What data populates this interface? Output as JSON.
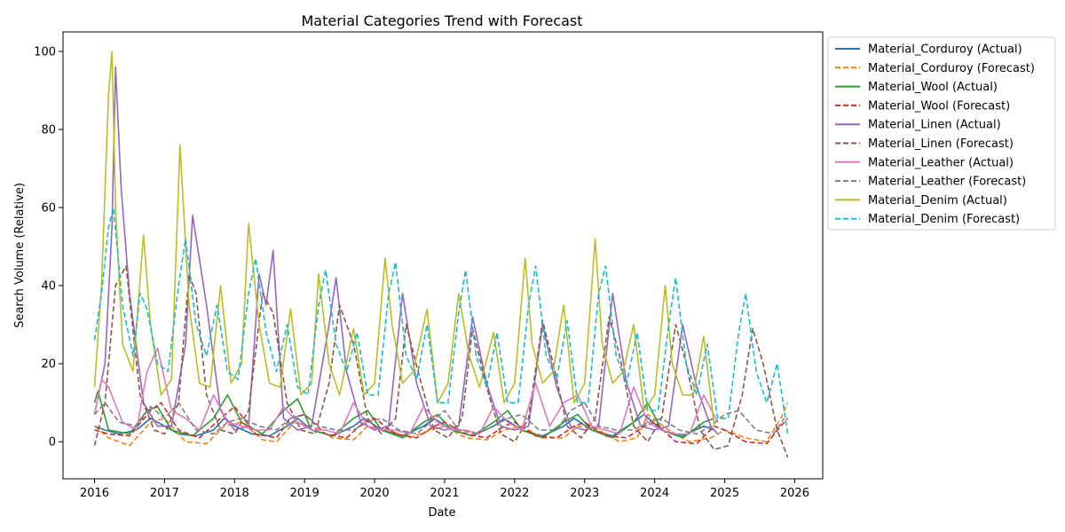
{
  "chart_data": {
    "type": "line",
    "title": "Material Categories Trend with Forecast",
    "xlabel": "Date",
    "ylabel": "Search Volume (Relative)",
    "xlim": [
      2015.55,
      2026.4
    ],
    "ylim": [
      -9.5,
      105
    ],
    "x_ticks": [
      2016,
      2017,
      2018,
      2019,
      2020,
      2021,
      2022,
      2023,
      2024,
      2025,
      2026
    ],
    "x_tick_labels": [
      "2016",
      "2017",
      "2018",
      "2019",
      "2020",
      "2021",
      "2022",
      "2023",
      "2024",
      "2025",
      "2026"
    ],
    "y_ticks": [
      0,
      20,
      40,
      60,
      80,
      100
    ],
    "y_tick_labels": [
      "0",
      "20",
      "40",
      "60",
      "80",
      "100"
    ],
    "grid": false,
    "legend_position": "outside-right-top",
    "series": [
      {
        "name": "Material_Corduroy (Actual)",
        "color": "#1f77b4",
        "style": "solid",
        "x": [
          2016.0,
          2016.15,
          2016.35,
          2016.6,
          2016.8,
          2017.0,
          2017.2,
          2017.45,
          2017.7,
          2017.85,
          2018.0,
          2018.25,
          2018.5,
          2018.75,
          2018.9,
          2019.1,
          2019.4,
          2019.7,
          2019.85,
          2020.1,
          2020.4,
          2020.7,
          2020.85,
          2021.1,
          2021.4,
          2021.7,
          2021.85,
          2022.1,
          2022.4,
          2022.7,
          2022.85,
          2023.1,
          2023.4,
          2023.7,
          2023.85,
          2024.1,
          2024.4,
          2024.7,
          2024.85
        ],
        "y": [
          4,
          3,
          2,
          3,
          6,
          4,
          2,
          1.5,
          3,
          6,
          4,
          2,
          1.5,
          4,
          6,
          3,
          1.5,
          4,
          6,
          3,
          1.5,
          4,
          6,
          3,
          1.5,
          4,
          6,
          3,
          1.5,
          4,
          6,
          3,
          1.5,
          5,
          7,
          3,
          1.5,
          4,
          3
        ]
      },
      {
        "name": "Material_Corduroy (Forecast)",
        "color": "#ff7f0e",
        "style": "dashed",
        "x": [
          2016.0,
          2016.2,
          2016.5,
          2016.8,
          2017.0,
          2017.3,
          2017.6,
          2017.85,
          2018.1,
          2018.4,
          2018.6,
          2018.85,
          2019.1,
          2019.4,
          2019.7,
          2019.9,
          2020.2,
          2020.5,
          2020.8,
          2021.0,
          2021.3,
          2021.6,
          2021.85,
          2022.1,
          2022.4,
          2022.7,
          2022.9,
          2023.2,
          2023.5,
          2023.75,
          2023.9,
          2024.2,
          2024.5,
          2024.8,
          2025.0,
          2025.3,
          2025.6,
          2025.8,
          2025.9
        ],
        "y": [
          4,
          1,
          -1,
          5,
          6,
          0,
          -0.5,
          4,
          5,
          0.5,
          0,
          5,
          4,
          1,
          0.5,
          4,
          3,
          1,
          3,
          4,
          1,
          0.5,
          3,
          4,
          1,
          1,
          4,
          3,
          0,
          1,
          7,
          3,
          0,
          1,
          3,
          1,
          0,
          6,
          10
        ]
      },
      {
        "name": "Material_Wool (Actual)",
        "color": "#2ca02c",
        "style": "solid",
        "x": [
          2016.0,
          2016.05,
          2016.2,
          2016.5,
          2016.75,
          2016.9,
          2017.1,
          2017.4,
          2017.7,
          2017.9,
          2018.1,
          2018.4,
          2018.7,
          2018.9,
          2019.1,
          2019.4,
          2019.7,
          2019.9,
          2020.1,
          2020.4,
          2020.7,
          2020.9,
          2021.1,
          2021.4,
          2021.7,
          2021.9,
          2022.1,
          2022.4,
          2022.7,
          2022.9,
          2023.1,
          2023.4,
          2023.7,
          2023.9,
          2024.1,
          2024.4,
          2024.7,
          2024.85
        ],
        "y": [
          10,
          13,
          3,
          2,
          8,
          9,
          3,
          1.5,
          6,
          12,
          5,
          2,
          8,
          11,
          3,
          1.5,
          6,
          8,
          3,
          1,
          5,
          7,
          3,
          1.5,
          5,
          8,
          3,
          1,
          5,
          7,
          3,
          1,
          5,
          10,
          3,
          1,
          5,
          6
        ]
      },
      {
        "name": "Material_Wool (Forecast)",
        "color": "#d62728",
        "style": "dashed",
        "x": [
          2016.0,
          2016.2,
          2016.5,
          2016.8,
          2016.95,
          2017.2,
          2017.5,
          2017.8,
          2018.0,
          2018.3,
          2018.6,
          2018.8,
          2019.0,
          2019.3,
          2019.6,
          2019.85,
          2020.0,
          2020.3,
          2020.6,
          2020.85,
          2021.0,
          2021.3,
          2021.6,
          2021.85,
          2022.0,
          2022.3,
          2022.6,
          2022.85,
          2023.0,
          2023.3,
          2023.6,
          2023.85,
          2024.0,
          2024.3,
          2024.6,
          2024.85,
          2025.0,
          2025.3,
          2025.6,
          2025.8,
          2025.9
        ],
        "y": [
          3,
          2,
          1.5,
          8,
          10,
          3,
          1,
          6,
          9,
          2,
          1,
          6,
          7,
          2,
          1,
          5,
          6,
          2,
          1,
          4,
          5,
          2,
          1,
          4,
          5,
          1.5,
          1,
          4,
          5,
          1.5,
          1,
          4,
          5,
          0,
          -0.5,
          4,
          3,
          0,
          -0.5,
          4,
          6
        ]
      },
      {
        "name": "Material_Linen (Actual)",
        "color": "#9467bd",
        "style": "solid",
        "x": [
          2016.0,
          2016.15,
          2016.25,
          2016.3,
          2016.38,
          2016.5,
          2016.7,
          2016.9,
          2017.1,
          2017.3,
          2017.4,
          2017.6,
          2017.8,
          2018.0,
          2018.2,
          2018.35,
          2018.45,
          2018.55,
          2018.7,
          2018.9,
          2019.1,
          2019.35,
          2019.45,
          2019.6,
          2019.8,
          2020.0,
          2020.2,
          2020.4,
          2020.6,
          2020.8,
          2021.0,
          2021.2,
          2021.4,
          2021.6,
          2021.8,
          2022.0,
          2022.2,
          2022.4,
          2022.6,
          2022.8,
          2023.0,
          2023.2,
          2023.4,
          2023.6,
          2023.8,
          2024.0,
          2024.2,
          2024.4,
          2024.6,
          2024.8,
          2024.9
        ],
        "y": [
          7,
          20,
          55,
          96,
          65,
          38,
          10,
          4,
          4,
          25,
          58,
          35,
          8,
          3,
          4,
          43,
          35,
          49,
          6,
          3,
          4,
          30,
          42,
          18,
          5,
          3,
          4,
          38,
          15,
          4,
          3,
          4,
          32,
          15,
          4,
          3,
          4,
          30,
          14,
          4,
          3,
          4,
          38,
          15,
          4,
          3,
          4,
          30,
          14,
          4,
          2
        ]
      },
      {
        "name": "Material_Linen (Forecast)",
        "color": "#8c564b",
        "style": "dashed",
        "x": [
          2016.0,
          2016.15,
          2016.3,
          2016.45,
          2016.65,
          2016.85,
          2017.0,
          2017.2,
          2017.35,
          2017.45,
          2017.6,
          2017.8,
          2018.0,
          2018.2,
          2018.4,
          2018.55,
          2018.75,
          2018.95,
          2019.15,
          2019.35,
          2019.5,
          2019.7,
          2019.9,
          2020.1,
          2020.3,
          2020.45,
          2020.65,
          2020.85,
          2021.05,
          2021.25,
          2021.4,
          2021.6,
          2021.8,
          2022.0,
          2022.2,
          2022.4,
          2022.55,
          2022.75,
          2022.95,
          2023.15,
          2023.35,
          2023.5,
          2023.7,
          2023.9,
          2024.1,
          2024.3,
          2024.45,
          2024.65,
          2024.85,
          2025.05,
          2025.25,
          2025.4,
          2025.55,
          2025.75,
          2025.9
        ],
        "y": [
          -1,
          10,
          40,
          45,
          12,
          3,
          2,
          10,
          43,
          38,
          12,
          3,
          2,
          8,
          38,
          33,
          10,
          3,
          2,
          15,
          35,
          25,
          6,
          2,
          6,
          30,
          16,
          3,
          1,
          6,
          29,
          14,
          2,
          0,
          6,
          31,
          20,
          4,
          1,
          6,
          32,
          22,
          4,
          0,
          6,
          30,
          20,
          3,
          -2,
          -1,
          12,
          29,
          20,
          3,
          -4
        ]
      },
      {
        "name": "Material_Leather (Actual)",
        "color": "#e377c2",
        "style": "solid",
        "x": [
          2016.0,
          2016.1,
          2016.2,
          2016.4,
          2016.6,
          2016.75,
          2016.9,
          2017.1,
          2017.3,
          2017.5,
          2017.7,
          2017.9,
          2018.1,
          2018.3,
          2018.5,
          2018.7,
          2018.9,
          2019.1,
          2019.3,
          2019.5,
          2019.7,
          2019.9,
          2020.1,
          2020.3,
          2020.5,
          2020.7,
          2020.9,
          2021.1,
          2021.3,
          2021.5,
          2021.7,
          2021.9,
          2022.1,
          2022.3,
          2022.5,
          2022.7,
          2022.9,
          2023.1,
          2023.3,
          2023.5,
          2023.7,
          2023.9,
          2024.1,
          2024.3,
          2024.5,
          2024.7,
          2024.9
        ],
        "y": [
          7,
          16,
          14,
          5,
          3,
          18,
          24,
          8,
          6,
          3,
          12,
          5,
          4,
          3,
          3,
          9,
          5,
          3,
          3,
          2,
          10,
          4,
          3,
          3,
          2,
          9,
          5,
          3,
          3,
          2,
          9,
          5,
          3,
          15,
          4,
          10,
          12,
          4,
          3,
          2,
          14,
          5,
          3,
          2,
          2,
          12,
          5
        ]
      },
      {
        "name": "Material_Leather (Forecast)",
        "color": "#7f7f7f",
        "style": "dashed",
        "x": [
          2016.0,
          2016.15,
          2016.35,
          2016.6,
          2016.8,
          2017.0,
          2017.2,
          2017.45,
          2017.7,
          2017.9,
          2018.1,
          2018.35,
          2018.6,
          2018.8,
          2019.0,
          2019.2,
          2019.45,
          2019.7,
          2019.9,
          2020.1,
          2020.35,
          2020.6,
          2020.8,
          2021.0,
          2021.2,
          2021.45,
          2021.7,
          2021.9,
          2022.1,
          2022.35,
          2022.6,
          2022.8,
          2023.0,
          2023.2,
          2023.45,
          2023.7,
          2023.9,
          2024.1,
          2024.35,
          2024.6,
          2024.8,
          2025.0,
          2025.2,
          2025.45,
          2025.7,
          2025.85
        ],
        "y": [
          7,
          10,
          5,
          4,
          9,
          6,
          10,
          3,
          2,
          5,
          6,
          4,
          3,
          6,
          7,
          4,
          3,
          3,
          5,
          6,
          3,
          2,
          5,
          8,
          3,
          2,
          4,
          6,
          7,
          3,
          3,
          8,
          10,
          4,
          3,
          3,
          5,
          6,
          3,
          2,
          4,
          7,
          8,
          3,
          2,
          6
        ]
      },
      {
        "name": "Material_Denim (Actual)",
        "color": "#bcbd22",
        "style": "solid",
        "x": [
          2016.0,
          2016.1,
          2016.2,
          2016.25,
          2016.3,
          2016.4,
          2016.55,
          2016.7,
          2016.8,
          2016.95,
          2017.1,
          2017.22,
          2017.35,
          2017.5,
          2017.65,
          2017.8,
          2017.95,
          2018.1,
          2018.2,
          2018.35,
          2018.5,
          2018.65,
          2018.8,
          2018.95,
          2019.1,
          2019.2,
          2019.35,
          2019.5,
          2019.7,
          2019.85,
          2020.0,
          2020.15,
          2020.25,
          2020.4,
          2020.55,
          2020.75,
          2020.9,
          2021.05,
          2021.2,
          2021.35,
          2021.5,
          2021.7,
          2021.85,
          2022.0,
          2022.15,
          2022.25,
          2022.4,
          2022.55,
          2022.7,
          2022.85,
          2023.0,
          2023.15,
          2023.25,
          2023.4,
          2023.55,
          2023.7,
          2023.85,
          2024.0,
          2024.15,
          2024.25,
          2024.4,
          2024.55,
          2024.7,
          2024.85
        ],
        "y": [
          14,
          40,
          89,
          100,
          60,
          25,
          18,
          53,
          30,
          12,
          16,
          76,
          35,
          15,
          14,
          40,
          15,
          20,
          56,
          30,
          15,
          14,
          34,
          12,
          15,
          43,
          20,
          12,
          29,
          12,
          15,
          47,
          30,
          15,
          18,
          34,
          10,
          15,
          38,
          22,
          14,
          28,
          10,
          15,
          47,
          25,
          15,
          18,
          35,
          10,
          15,
          52,
          25,
          15,
          18,
          30,
          8,
          12,
          40,
          20,
          12,
          12,
          27,
          4
        ]
      },
      {
        "name": "Material_Denim (Forecast)",
        "color": "#17becf",
        "style": "dashed",
        "x": [
          2016.0,
          2016.1,
          2016.2,
          2016.27,
          2016.4,
          2016.55,
          2016.65,
          2016.75,
          2016.9,
          2017.05,
          2017.2,
          2017.3,
          2017.45,
          2017.6,
          2017.75,
          2017.9,
          2018.05,
          2018.2,
          2018.3,
          2018.45,
          2018.6,
          2018.75,
          2018.9,
          2019.05,
          2019.2,
          2019.3,
          2019.45,
          2019.6,
          2019.75,
          2019.9,
          2020.05,
          2020.2,
          2020.3,
          2020.45,
          2020.6,
          2020.75,
          2020.9,
          2021.05,
          2021.2,
          2021.3,
          2021.45,
          2021.6,
          2021.75,
          2021.9,
          2022.05,
          2022.2,
          2022.3,
          2022.45,
          2022.6,
          2022.75,
          2022.9,
          2023.05,
          2023.2,
          2023.3,
          2023.45,
          2023.6,
          2023.75,
          2023.9,
          2024.05,
          2024.2,
          2024.3,
          2024.45,
          2024.6,
          2024.75,
          2024.9,
          2025.05,
          2025.2,
          2025.3,
          2025.45,
          2025.6,
          2025.75,
          2025.9
        ],
        "y": [
          26,
          38,
          55,
          60,
          35,
          22,
          38,
          34,
          20,
          18,
          40,
          52,
          30,
          22,
          35,
          18,
          16,
          38,
          47,
          28,
          18,
          30,
          14,
          12,
          35,
          44,
          25,
          18,
          28,
          12,
          12,
          38,
          46,
          22,
          16,
          30,
          10,
          10,
          33,
          44,
          22,
          14,
          28,
          10,
          10,
          35,
          45,
          22,
          16,
          31,
          10,
          10,
          38,
          45,
          22,
          15,
          28,
          8,
          8,
          30,
          42,
          20,
          12,
          25,
          6,
          6,
          28,
          38,
          18,
          10,
          20,
          2
        ]
      }
    ]
  }
}
